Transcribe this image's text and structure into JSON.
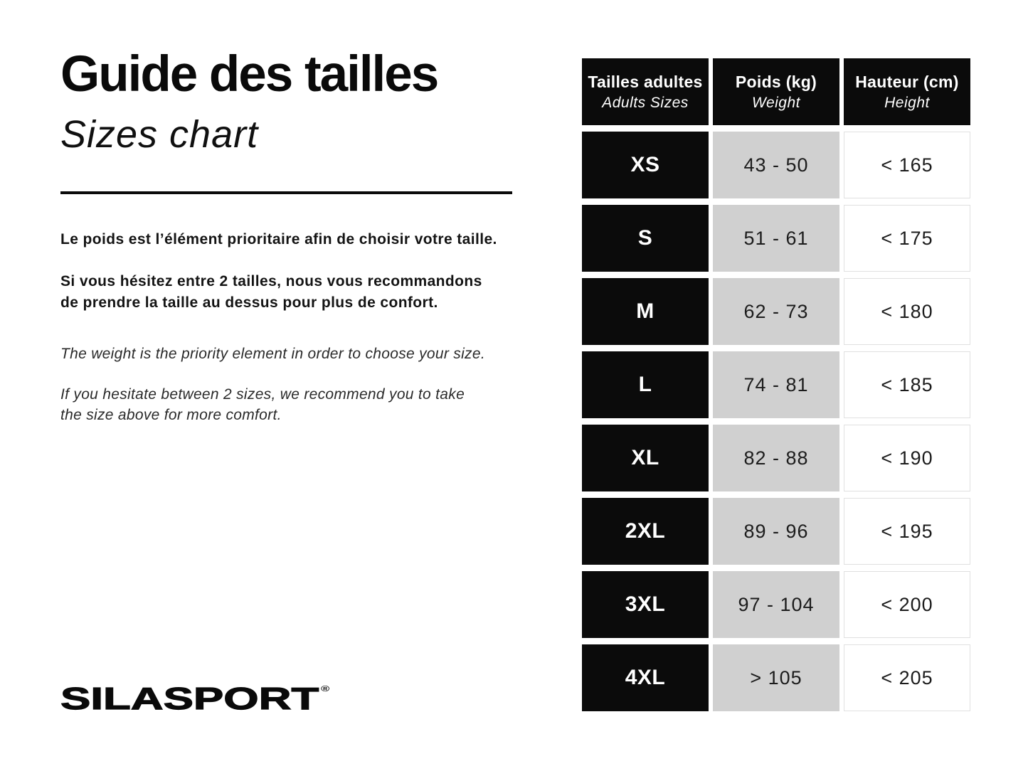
{
  "colors": {
    "background": "#ffffff",
    "black_cell": "#0b0b0b",
    "gray_cell": "#d0d0d0",
    "height_cell_border": "#e0e0e0"
  },
  "left": {
    "title_fr": "Guide des tailles",
    "title_en": "Sizes chart",
    "paragraph_fr_1": "Le poids est l’élément prioritaire afin de choisir votre taille.",
    "paragraph_fr_2": {
      "line1": "Si vous hésitez entre 2 tailles, nous vous recommandons",
      "line2": "de prendre la taille au dessus pour plus de confort."
    },
    "paragraph_en_1": "The weight is the priority element in order to choose your size.",
    "paragraph_en_2": {
      "line1": "If you hesitate between 2 sizes, we recommend you to take",
      "line2": "the size above for more comfort."
    },
    "logo_text": "SILASPORT",
    "logo_registered": "®"
  },
  "table": {
    "headers": [
      {
        "fr": "Tailles adultes",
        "en": "Adults Sizes"
      },
      {
        "fr": "Poids (kg)",
        "en": "Weight"
      },
      {
        "fr": "Hauteur (cm)",
        "en": "Height"
      }
    ],
    "rows": [
      {
        "size": "XS",
        "weight": "43 - 50",
        "height": "< 165"
      },
      {
        "size": "S",
        "weight": "51 - 61",
        "height": "< 175"
      },
      {
        "size": "M",
        "weight": "62 - 73",
        "height": "< 180"
      },
      {
        "size": "L",
        "weight": "74 - 81",
        "height": "< 185"
      },
      {
        "size": "XL",
        "weight": "82 - 88",
        "height": "< 190"
      },
      {
        "size": "2XL",
        "weight": "89 - 96",
        "height": "< 195"
      },
      {
        "size": "3XL",
        "weight": "97 - 104",
        "height": "< 200"
      },
      {
        "size": "4XL",
        "weight": "> 105",
        "height": "< 205"
      }
    ]
  }
}
